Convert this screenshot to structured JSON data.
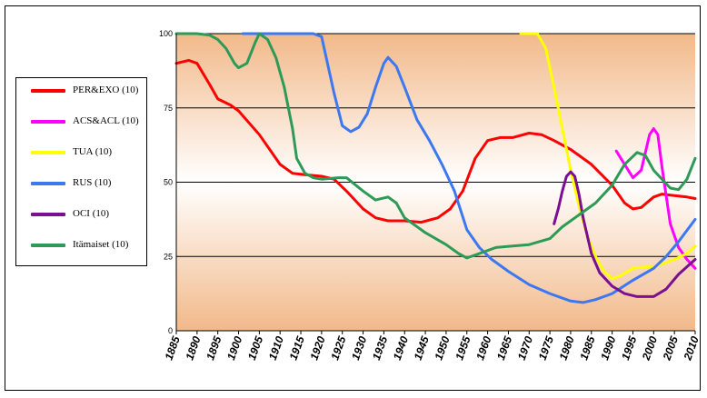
{
  "chart_data": {
    "type": "line",
    "title": "",
    "xlabel": "",
    "ylabel": "",
    "xlim": [
      1885,
      2010
    ],
    "ylim": [
      0,
      100
    ],
    "x_ticks": [
      "1885",
      "1890",
      "1895",
      "1900",
      "1905",
      "1910",
      "1915",
      "1920",
      "1925",
      "1930",
      "1935",
      "1940",
      "1945",
      "1950",
      "1955",
      "1960",
      "1965",
      "1970",
      "1975",
      "1980",
      "1985",
      "1990",
      "1995",
      "2000",
      "2005",
      "2010"
    ],
    "y_ticks": [
      "0",
      "25",
      "50",
      "75",
      "100"
    ],
    "grid": "horizontal",
    "legend_position": "left",
    "series": [
      {
        "name": "PER&EXO (10)",
        "color": "#ff0000",
        "points": [
          [
            1885,
            90
          ],
          [
            1888,
            91
          ],
          [
            1890,
            90
          ],
          [
            1893,
            83
          ],
          [
            1895,
            78
          ],
          [
            1898,
            76
          ],
          [
            1900,
            74
          ],
          [
            1905,
            66
          ],
          [
            1910,
            56
          ],
          [
            1913,
            53
          ],
          [
            1916,
            52.5
          ],
          [
            1920,
            52
          ],
          [
            1923,
            51
          ],
          [
            1926,
            47
          ],
          [
            1930,
            41
          ],
          [
            1933,
            38
          ],
          [
            1936,
            37
          ],
          [
            1940,
            37
          ],
          [
            1944,
            36.5
          ],
          [
            1948,
            38
          ],
          [
            1951,
            41
          ],
          [
            1954,
            47
          ],
          [
            1957,
            58
          ],
          [
            1960,
            64
          ],
          [
            1963,
            65
          ],
          [
            1966,
            65
          ],
          [
            1970,
            66.5
          ],
          [
            1973,
            66
          ],
          [
            1976,
            64
          ],
          [
            1980,
            61
          ],
          [
            1985,
            56
          ],
          [
            1990,
            49
          ],
          [
            1993,
            43
          ],
          [
            1995,
            41
          ],
          [
            1997,
            41.5
          ],
          [
            2000,
            45
          ],
          [
            2002,
            46
          ],
          [
            2005,
            45.5
          ],
          [
            2008,
            45
          ],
          [
            2010,
            44.5
          ]
        ]
      },
      {
        "name": "ACS&ACL (10)",
        "color": "#ff00ff",
        "points": [
          [
            1991,
            60.5
          ],
          [
            1993,
            56
          ],
          [
            1995,
            51.5
          ],
          [
            1997,
            54
          ],
          [
            1999,
            66
          ],
          [
            2000,
            68
          ],
          [
            2001,
            66
          ],
          [
            2002,
            55
          ],
          [
            2004,
            36
          ],
          [
            2006,
            28
          ],
          [
            2008,
            24
          ],
          [
            2010,
            21
          ]
        ]
      },
      {
        "name": "TUA (10)",
        "color": "#ffff00",
        "points": [
          [
            1968,
            100
          ],
          [
            1972,
            100
          ],
          [
            1974,
            95
          ],
          [
            1976,
            82
          ],
          [
            1978,
            68
          ],
          [
            1980,
            54
          ],
          [
            1982,
            42
          ],
          [
            1984,
            32
          ],
          [
            1986,
            25
          ],
          [
            1988,
            20
          ],
          [
            1990,
            17.5
          ],
          [
            1992,
            18.5
          ],
          [
            1995,
            21
          ],
          [
            1998,
            21.5
          ],
          [
            2000,
            21.5
          ],
          [
            2005,
            24
          ],
          [
            2008,
            26
          ],
          [
            2010,
            28.5
          ]
        ]
      },
      {
        "name": "RUS (10)",
        "color": "#3c78f0",
        "points": [
          [
            1901,
            100
          ],
          [
            1918,
            100
          ],
          [
            1920,
            99
          ],
          [
            1923,
            80
          ],
          [
            1925,
            69
          ],
          [
            1927,
            67
          ],
          [
            1929,
            68.5
          ],
          [
            1931,
            73
          ],
          [
            1933,
            82
          ],
          [
            1935,
            90
          ],
          [
            1936,
            92
          ],
          [
            1938,
            89
          ],
          [
            1940,
            82
          ],
          [
            1943,
            71
          ],
          [
            1946,
            64
          ],
          [
            1949,
            56
          ],
          [
            1952,
            47
          ],
          [
            1955,
            34
          ],
          [
            1958,
            28
          ],
          [
            1961,
            24
          ],
          [
            1965,
            20
          ],
          [
            1970,
            15.5
          ],
          [
            1975,
            12.5
          ],
          [
            1980,
            10
          ],
          [
            1983,
            9.5
          ],
          [
            1986,
            10.5
          ],
          [
            1990,
            12.5
          ],
          [
            1995,
            17
          ],
          [
            2000,
            21
          ],
          [
            2003,
            25
          ],
          [
            2006,
            30
          ],
          [
            2010,
            37.5
          ]
        ]
      },
      {
        "name": "OCI (10)",
        "color": "#7b0f93",
        "points": [
          [
            1976,
            36
          ],
          [
            1977,
            41
          ],
          [
            1978,
            47
          ],
          [
            1979,
            52
          ],
          [
            1980,
            53.5
          ],
          [
            1981,
            52
          ],
          [
            1982,
            46
          ],
          [
            1983,
            38
          ],
          [
            1985,
            26
          ],
          [
            1987,
            19.5
          ],
          [
            1990,
            15
          ],
          [
            1993,
            12.5
          ],
          [
            1996,
            11.5
          ],
          [
            2000,
            11.5
          ],
          [
            2003,
            14
          ],
          [
            2006,
            19
          ],
          [
            2010,
            24
          ]
        ]
      },
      {
        "name": "Itämaiset (10)",
        "color": "#2e9a57",
        "points": [
          [
            1885,
            100
          ],
          [
            1890,
            100
          ],
          [
            1893,
            99.5
          ],
          [
            1895,
            98
          ],
          [
            1897,
            95
          ],
          [
            1899,
            90
          ],
          [
            1900,
            88.5
          ],
          [
            1902,
            90
          ],
          [
            1904,
            97
          ],
          [
            1905,
            100
          ],
          [
            1907,
            98
          ],
          [
            1909,
            92
          ],
          [
            1911,
            82
          ],
          [
            1913,
            68
          ],
          [
            1914,
            58
          ],
          [
            1916,
            53
          ],
          [
            1918,
            51.5
          ],
          [
            1920,
            51
          ],
          [
            1924,
            51.5
          ],
          [
            1926,
            51.5
          ],
          [
            1930,
            47
          ],
          [
            1933,
            44
          ],
          [
            1936,
            45
          ],
          [
            1938,
            43
          ],
          [
            1940,
            38
          ],
          [
            1945,
            33
          ],
          [
            1950,
            29
          ],
          [
            1953,
            26
          ],
          [
            1955,
            24.5
          ],
          [
            1958,
            26
          ],
          [
            1962,
            28
          ],
          [
            1966,
            28.5
          ],
          [
            1970,
            29
          ],
          [
            1975,
            31
          ],
          [
            1978,
            35
          ],
          [
            1982,
            39
          ],
          [
            1986,
            43
          ],
          [
            1990,
            49
          ],
          [
            1993,
            56
          ],
          [
            1996,
            60
          ],
          [
            1998,
            59
          ],
          [
            2000,
            54
          ],
          [
            2004,
            48
          ],
          [
            2006,
            47.5
          ],
          [
            2008,
            51
          ],
          [
            2010,
            58
          ]
        ]
      }
    ]
  }
}
